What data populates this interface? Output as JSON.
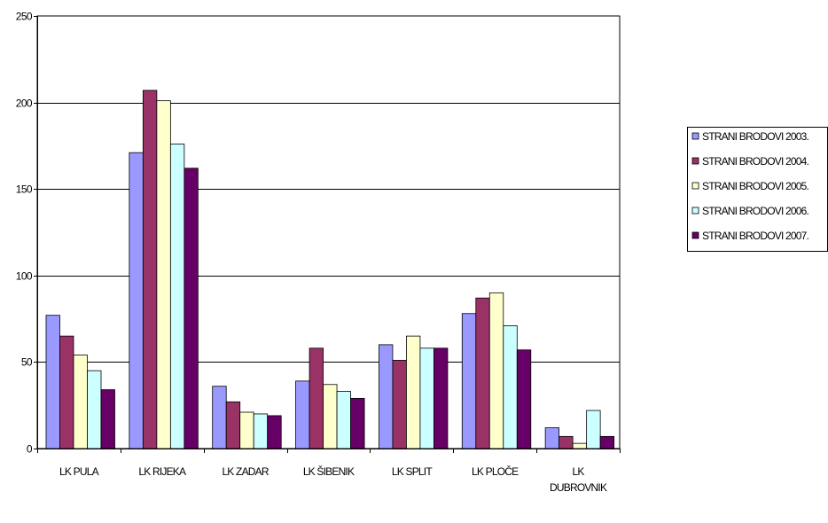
{
  "chart_data": {
    "type": "bar",
    "categories": [
      [
        "LK PULA"
      ],
      [
        "LK RIJEKA"
      ],
      [
        "LK ZADAR"
      ],
      [
        "LK ŠIBENIK"
      ],
      [
        "LK SPLIT"
      ],
      [
        "LK PLOČE"
      ],
      [
        "LK",
        "DUBROVNIK"
      ]
    ],
    "series": [
      {
        "name": "STRANI BRODOVI 2003.",
        "color": "#9999ff",
        "values": [
          77,
          171,
          36,
          39,
          60,
          78,
          12
        ]
      },
      {
        "name": "STRANI BRODOVI 2004.",
        "color": "#993366",
        "values": [
          65,
          207,
          27,
          58,
          51,
          87,
          7
        ]
      },
      {
        "name": "STRANI BRODOVI 2005.",
        "color": "#ffffcc",
        "values": [
          54,
          201,
          21,
          37,
          65,
          90,
          3
        ]
      },
      {
        "name": "STRANI BRODOVI 2006.",
        "color": "#ccffff",
        "values": [
          45,
          176,
          20,
          33,
          58,
          71,
          22
        ]
      },
      {
        "name": "STRANI BRODOVI 2007.",
        "color": "#660066",
        "values": [
          34,
          162,
          19,
          29,
          58,
          57,
          7
        ]
      }
    ],
    "yticks": [
      "0",
      "50",
      "100",
      "150",
      "200",
      "250"
    ],
    "ylim": [
      0,
      250
    ],
    "grid": true,
    "legend_position": "right"
  }
}
